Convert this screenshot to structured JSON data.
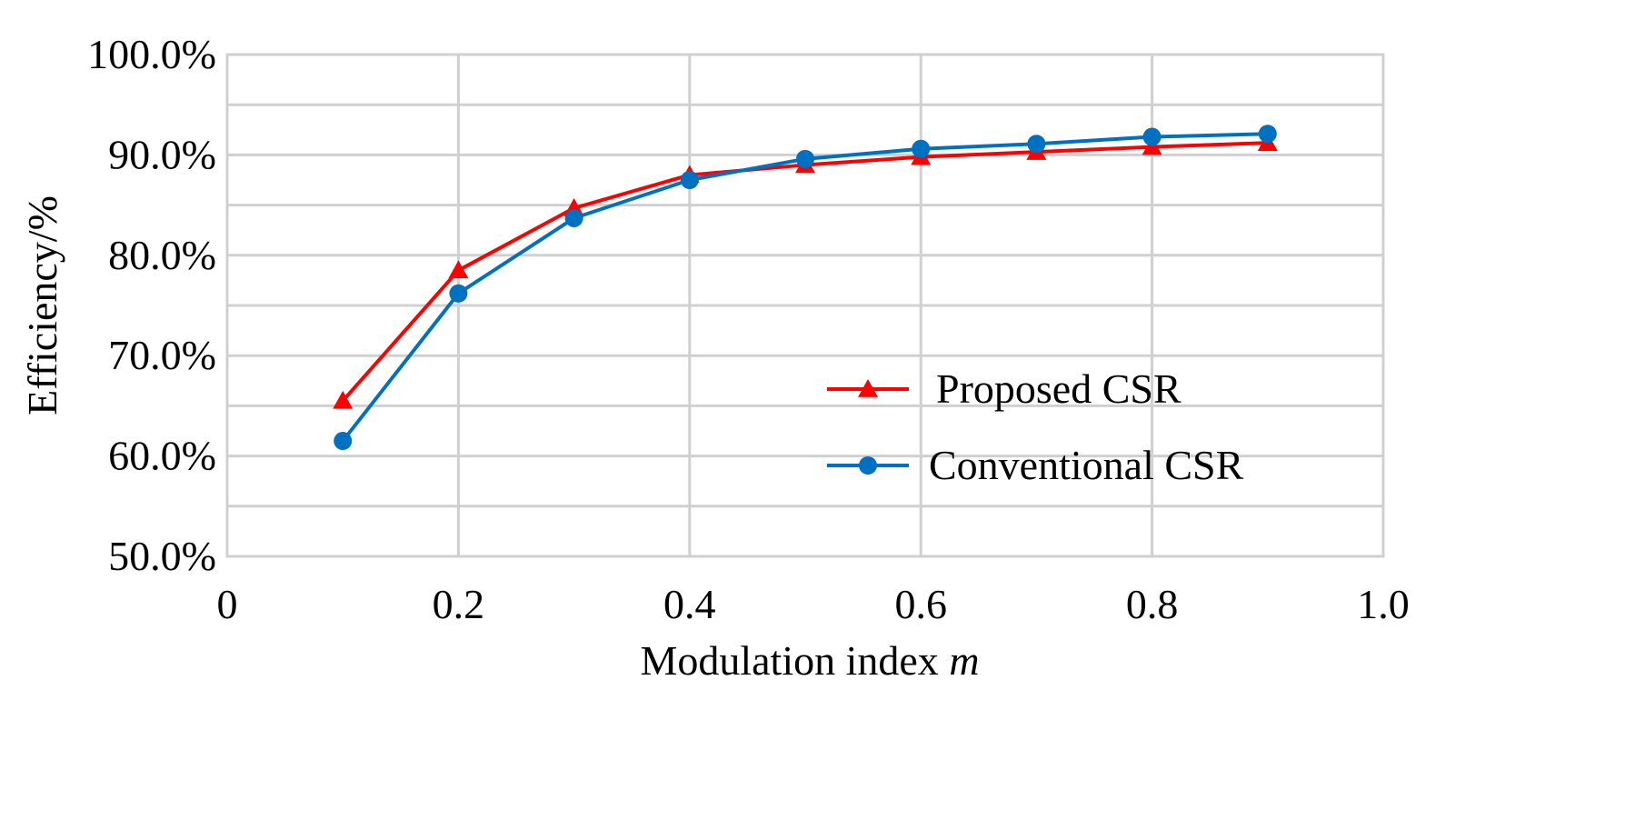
{
  "chart_data": {
    "type": "line",
    "title": "",
    "xlabel_text": "Modulation index ",
    "xlabel_var": "m",
    "ylabel": "Efficiency/%",
    "xlim": [
      0,
      1.0
    ],
    "ylim": [
      50,
      100
    ],
    "x_ticks": [
      {
        "value": 0,
        "label": "0"
      },
      {
        "value": 0.2,
        "label": "0.2"
      },
      {
        "value": 0.4,
        "label": "0.4"
      },
      {
        "value": 0.6,
        "label": "0.6"
      },
      {
        "value": 0.8,
        "label": "0.8"
      },
      {
        "value": 1.0,
        "label": "1.0"
      }
    ],
    "y_ticks": [
      {
        "value": 50,
        "label": "50.0%"
      },
      {
        "value": 60,
        "label": "60.0%"
      },
      {
        "value": 70,
        "label": "70.0%"
      },
      {
        "value": 80,
        "label": "80.0%"
      },
      {
        "value": 90,
        "label": "90.0%"
      },
      {
        "value": 100,
        "label": "100.0%"
      }
    ],
    "x_grid": [
      0.2,
      0.4,
      0.6,
      0.8,
      1.0
    ],
    "y_grid": [
      55,
      60,
      65,
      70,
      75,
      80,
      85,
      90,
      95,
      100
    ],
    "legend_position": "bottom-right",
    "x": [
      0.1,
      0.2,
      0.3,
      0.4,
      0.5,
      0.6,
      0.7,
      0.8,
      0.9
    ],
    "series": [
      {
        "name": "Proposed CSR",
        "color": "#ff0000",
        "marker": "triangle",
        "values": [
          65.5,
          78.5,
          84.7,
          88.0,
          89.0,
          89.8,
          90.3,
          90.8,
          91.2
        ]
      },
      {
        "name": "Conventional CSR",
        "color": "#0070c0",
        "marker": "circle",
        "values": [
          61.5,
          76.2,
          83.7,
          87.5,
          89.6,
          90.6,
          91.1,
          91.8,
          92.1
        ]
      }
    ]
  }
}
